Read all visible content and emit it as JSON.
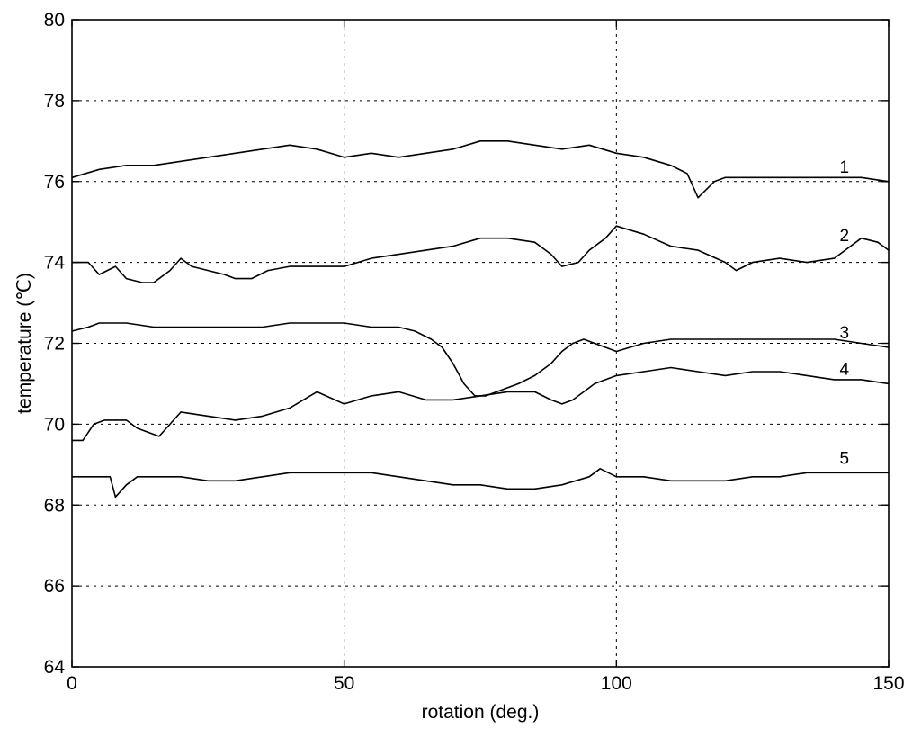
{
  "chart_data": {
    "type": "line",
    "title": "",
    "xlabel": "rotation (deg.)",
    "ylabel": "temperature (℃)",
    "xlim": [
      0,
      150
    ],
    "ylim": [
      64,
      80
    ],
    "xticks": [
      0,
      50,
      100,
      150
    ],
    "yticks": [
      64,
      66,
      68,
      70,
      72,
      74,
      76,
      78,
      80
    ],
    "grid": true,
    "legend": "none",
    "series": [
      {
        "label": "1",
        "x": [
          0,
          5,
          10,
          15,
          20,
          25,
          30,
          35,
          40,
          45,
          50,
          55,
          60,
          65,
          70,
          75,
          80,
          85,
          90,
          95,
          100,
          105,
          110,
          113,
          115,
          118,
          120,
          125,
          130,
          135,
          140,
          145,
          150
        ],
        "y": [
          76.1,
          76.3,
          76.4,
          76.4,
          76.5,
          76.6,
          76.7,
          76.8,
          76.9,
          76.8,
          76.6,
          76.7,
          76.6,
          76.7,
          76.8,
          77.0,
          77.0,
          76.9,
          76.8,
          76.9,
          76.7,
          76.6,
          76.4,
          76.2,
          75.6,
          76.0,
          76.1,
          76.1,
          76.1,
          76.1,
          76.1,
          76.1,
          76.0
        ]
      },
      {
        "label": "2",
        "x": [
          0,
          3,
          5,
          8,
          10,
          13,
          15,
          18,
          20,
          22,
          25,
          28,
          30,
          33,
          36,
          40,
          45,
          50,
          55,
          60,
          65,
          70,
          75,
          80,
          85,
          88,
          90,
          93,
          95,
          98,
          100,
          105,
          110,
          115,
          120,
          122,
          125,
          130,
          135,
          140,
          145,
          148,
          150
        ],
        "y": [
          74.0,
          74.0,
          73.7,
          73.9,
          73.6,
          73.5,
          73.5,
          73.8,
          74.1,
          73.9,
          73.8,
          73.7,
          73.6,
          73.6,
          73.8,
          73.9,
          73.9,
          73.9,
          74.1,
          74.2,
          74.3,
          74.4,
          74.6,
          74.6,
          74.5,
          74.2,
          73.9,
          74.0,
          74.3,
          74.6,
          74.9,
          74.7,
          74.4,
          74.3,
          74.0,
          73.8,
          74.0,
          74.1,
          74.0,
          74.1,
          74.6,
          74.5,
          74.3
        ]
      },
      {
        "label": "3",
        "x": [
          0,
          3,
          5,
          10,
          15,
          20,
          25,
          30,
          35,
          40,
          45,
          50,
          55,
          60,
          63,
          66,
          68,
          70,
          72,
          74,
          76,
          78,
          80,
          82,
          85,
          88,
          90,
          92,
          94,
          96,
          98,
          100,
          105,
          110,
          115,
          120,
          125,
          130,
          135,
          140,
          145,
          150
        ],
        "y": [
          72.3,
          72.4,
          72.5,
          72.5,
          72.4,
          72.4,
          72.4,
          72.4,
          72.4,
          72.5,
          72.5,
          72.5,
          72.4,
          72.4,
          72.3,
          72.1,
          71.9,
          71.5,
          71.0,
          70.7,
          70.7,
          70.8,
          70.9,
          71.0,
          71.2,
          71.5,
          71.8,
          72.0,
          72.1,
          72.0,
          71.9,
          71.8,
          72.0,
          72.1,
          72.1,
          72.1,
          72.1,
          72.1,
          72.1,
          72.1,
          72.0,
          71.9
        ]
      },
      {
        "label": "4",
        "x": [
          0,
          2,
          4,
          6,
          8,
          10,
          12,
          14,
          16,
          18,
          20,
          25,
          30,
          35,
          40,
          45,
          50,
          55,
          60,
          65,
          70,
          75,
          80,
          85,
          88,
          90,
          92,
          94,
          96,
          98,
          100,
          105,
          110,
          115,
          120,
          125,
          130,
          135,
          140,
          145,
          150
        ],
        "y": [
          69.6,
          69.6,
          70.0,
          70.1,
          70.1,
          70.1,
          69.9,
          69.8,
          69.7,
          70.0,
          70.3,
          70.2,
          70.1,
          70.2,
          70.4,
          70.8,
          70.5,
          70.7,
          70.8,
          70.6,
          70.6,
          70.7,
          70.8,
          70.8,
          70.6,
          70.5,
          70.6,
          70.8,
          71.0,
          71.1,
          71.2,
          71.3,
          71.4,
          71.3,
          71.2,
          71.3,
          71.3,
          71.2,
          71.1,
          71.1,
          71.0
        ]
      },
      {
        "label": "5",
        "x": [
          0,
          3,
          5,
          7,
          8,
          10,
          12,
          15,
          20,
          25,
          30,
          35,
          40,
          45,
          50,
          55,
          60,
          65,
          70,
          75,
          80,
          85,
          90,
          95,
          97,
          100,
          105,
          110,
          115,
          120,
          125,
          130,
          135,
          140,
          145,
          150
        ],
        "y": [
          68.7,
          68.7,
          68.7,
          68.7,
          68.2,
          68.5,
          68.7,
          68.7,
          68.7,
          68.6,
          68.6,
          68.7,
          68.8,
          68.8,
          68.8,
          68.8,
          68.7,
          68.6,
          68.5,
          68.5,
          68.4,
          68.4,
          68.5,
          68.7,
          68.9,
          68.7,
          68.7,
          68.6,
          68.6,
          68.6,
          68.7,
          68.7,
          68.8,
          68.8,
          68.8,
          68.8
        ]
      }
    ]
  }
}
